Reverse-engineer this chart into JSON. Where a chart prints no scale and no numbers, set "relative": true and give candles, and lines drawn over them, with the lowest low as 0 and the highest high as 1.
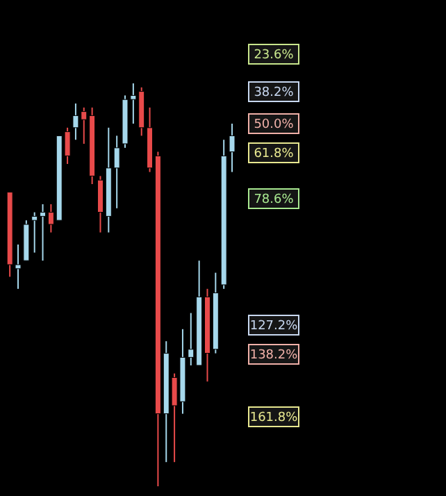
{
  "chart_data": {
    "type": "candlestick",
    "relative": true,
    "categories": [
      null,
      null,
      null,
      null,
      null,
      null,
      null,
      null,
      null,
      null,
      null,
      null,
      null,
      null,
      null,
      null,
      null,
      null,
      null,
      null,
      null,
      null,
      null,
      null,
      null,
      null,
      null,
      null
    ],
    "ohlc": [
      [
        0.73,
        0.73,
        0.52,
        0.55
      ],
      [
        0.54,
        0.6,
        0.49,
        0.55
      ],
      [
        0.56,
        0.66,
        0.56,
        0.65
      ],
      [
        0.66,
        0.68,
        0.58,
        0.67
      ],
      [
        0.67,
        0.7,
        0.56,
        0.68
      ],
      [
        0.68,
        0.7,
        0.63,
        0.65
      ],
      [
        0.66,
        0.87,
        0.66,
        0.87
      ],
      [
        0.88,
        0.89,
        0.8,
        0.82
      ],
      [
        0.89,
        0.95,
        0.86,
        0.92
      ],
      [
        0.93,
        0.94,
        0.85,
        0.91
      ],
      [
        0.92,
        0.94,
        0.75,
        0.77
      ],
      [
        0.76,
        0.77,
        0.63,
        0.68
      ],
      [
        0.67,
        0.89,
        0.63,
        0.79
      ],
      [
        0.79,
        0.87,
        0.69,
        0.84
      ],
      [
        0.85,
        0.97,
        0.84,
        0.96
      ],
      [
        0.96,
        1.0,
        0.9,
        0.97
      ],
      [
        0.98,
        0.99,
        0.87,
        0.89
      ],
      [
        0.89,
        0.94,
        0.78,
        0.79
      ],
      [
        0.82,
        0.83,
        0.0,
        0.18
      ],
      [
        0.18,
        0.36,
        0.06,
        0.33
      ],
      [
        0.27,
        0.28,
        0.06,
        0.2
      ],
      [
        0.21,
        0.39,
        0.18,
        0.32
      ],
      [
        0.32,
        0.43,
        0.3,
        0.34
      ],
      [
        0.3,
        0.56,
        0.3,
        0.47
      ],
      [
        0.47,
        0.49,
        0.26,
        0.33
      ],
      [
        0.34,
        0.53,
        0.33,
        0.48
      ],
      [
        0.5,
        0.86,
        0.49,
        0.82
      ],
      [
        0.83,
        0.9,
        0.78,
        0.87
      ]
    ],
    "colors": [
      "#e84a4a",
      "#a6d8ec",
      "#a6d8ec",
      "#a6d8ec",
      "#a6d8ec",
      "#e84a4a",
      "#a6d8ec",
      "#e84a4a",
      "#a6d8ec",
      "#e84a4a",
      "#e84a4a",
      "#e84a4a",
      "#a6d8ec",
      "#a6d8ec",
      "#a6d8ec",
      "#a6d8ec",
      "#e84a4a",
      "#e84a4a",
      "#e84a4a",
      "#a6d8ec",
      "#e84a4a",
      "#a6d8ec",
      "#a6d8ec",
      "#a6d8ec",
      "#e84a4a",
      "#a6d8ec",
      "#a6d8ec",
      "#a6d8ec"
    ],
    "annotations": [
      "23.6%",
      "38.2%",
      "50.0%",
      "61.8%",
      "78.6%",
      "127.2%",
      "138.2%",
      "161.8%"
    ]
  }
}
